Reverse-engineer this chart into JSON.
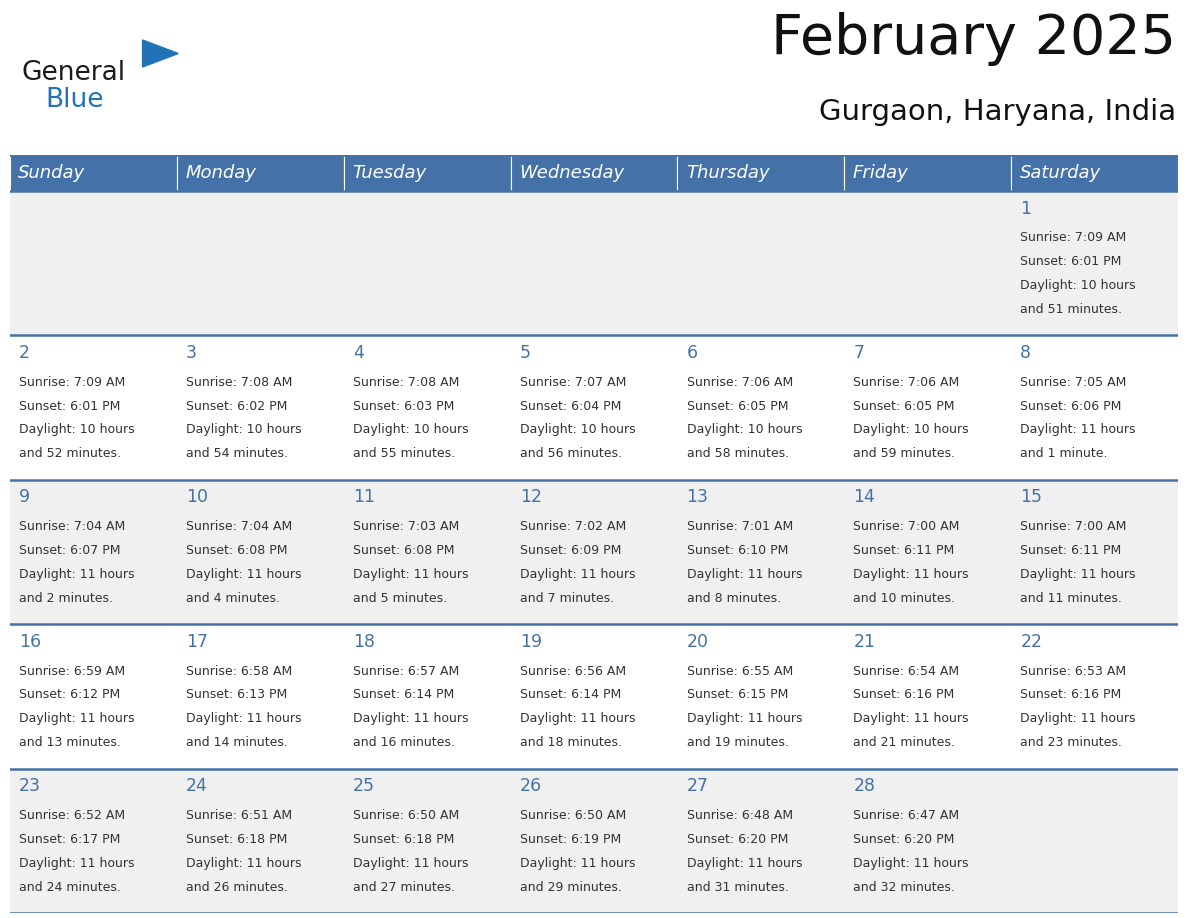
{
  "title": "February 2025",
  "subtitle": "Gurgaon, Haryana, India",
  "days_of_week": [
    "Sunday",
    "Monday",
    "Tuesday",
    "Wednesday",
    "Thursday",
    "Friday",
    "Saturday"
  ],
  "header_bg": "#4472a8",
  "header_text": "#ffffff",
  "cell_bg_even": "#f0f0f0",
  "cell_bg_odd": "#ffffff",
  "day_number_color": "#4472a8",
  "info_text_color": "#333333",
  "border_color": "#4472a8",
  "logo_general_color": "#1a1a1a",
  "logo_blue_color": "#2272b8",
  "calendar_data": [
    {
      "day": 1,
      "week_row": 0,
      "col": 6,
      "sunrise": "7:09 AM",
      "sunset": "6:01 PM",
      "daylight_hours": 10,
      "daylight_minutes": 51
    },
    {
      "day": 2,
      "week_row": 1,
      "col": 0,
      "sunrise": "7:09 AM",
      "sunset": "6:01 PM",
      "daylight_hours": 10,
      "daylight_minutes": 52
    },
    {
      "day": 3,
      "week_row": 1,
      "col": 1,
      "sunrise": "7:08 AM",
      "sunset": "6:02 PM",
      "daylight_hours": 10,
      "daylight_minutes": 54
    },
    {
      "day": 4,
      "week_row": 1,
      "col": 2,
      "sunrise": "7:08 AM",
      "sunset": "6:03 PM",
      "daylight_hours": 10,
      "daylight_minutes": 55
    },
    {
      "day": 5,
      "week_row": 1,
      "col": 3,
      "sunrise": "7:07 AM",
      "sunset": "6:04 PM",
      "daylight_hours": 10,
      "daylight_minutes": 56
    },
    {
      "day": 6,
      "week_row": 1,
      "col": 4,
      "sunrise": "7:06 AM",
      "sunset": "6:05 PM",
      "daylight_hours": 10,
      "daylight_minutes": 58
    },
    {
      "day": 7,
      "week_row": 1,
      "col": 5,
      "sunrise": "7:06 AM",
      "sunset": "6:05 PM",
      "daylight_hours": 10,
      "daylight_minutes": 59
    },
    {
      "day": 8,
      "week_row": 1,
      "col": 6,
      "sunrise": "7:05 AM",
      "sunset": "6:06 PM",
      "daylight_hours": 11,
      "daylight_minutes": 1
    },
    {
      "day": 9,
      "week_row": 2,
      "col": 0,
      "sunrise": "7:04 AM",
      "sunset": "6:07 PM",
      "daylight_hours": 11,
      "daylight_minutes": 2
    },
    {
      "day": 10,
      "week_row": 2,
      "col": 1,
      "sunrise": "7:04 AM",
      "sunset": "6:08 PM",
      "daylight_hours": 11,
      "daylight_minutes": 4
    },
    {
      "day": 11,
      "week_row": 2,
      "col": 2,
      "sunrise": "7:03 AM",
      "sunset": "6:08 PM",
      "daylight_hours": 11,
      "daylight_minutes": 5
    },
    {
      "day": 12,
      "week_row": 2,
      "col": 3,
      "sunrise": "7:02 AM",
      "sunset": "6:09 PM",
      "daylight_hours": 11,
      "daylight_minutes": 7
    },
    {
      "day": 13,
      "week_row": 2,
      "col": 4,
      "sunrise": "7:01 AM",
      "sunset": "6:10 PM",
      "daylight_hours": 11,
      "daylight_minutes": 8
    },
    {
      "day": 14,
      "week_row": 2,
      "col": 5,
      "sunrise": "7:00 AM",
      "sunset": "6:11 PM",
      "daylight_hours": 11,
      "daylight_minutes": 10
    },
    {
      "day": 15,
      "week_row": 2,
      "col": 6,
      "sunrise": "7:00 AM",
      "sunset": "6:11 PM",
      "daylight_hours": 11,
      "daylight_minutes": 11
    },
    {
      "day": 16,
      "week_row": 3,
      "col": 0,
      "sunrise": "6:59 AM",
      "sunset": "6:12 PM",
      "daylight_hours": 11,
      "daylight_minutes": 13
    },
    {
      "day": 17,
      "week_row": 3,
      "col": 1,
      "sunrise": "6:58 AM",
      "sunset": "6:13 PM",
      "daylight_hours": 11,
      "daylight_minutes": 14
    },
    {
      "day": 18,
      "week_row": 3,
      "col": 2,
      "sunrise": "6:57 AM",
      "sunset": "6:14 PM",
      "daylight_hours": 11,
      "daylight_minutes": 16
    },
    {
      "day": 19,
      "week_row": 3,
      "col": 3,
      "sunrise": "6:56 AM",
      "sunset": "6:14 PM",
      "daylight_hours": 11,
      "daylight_minutes": 18
    },
    {
      "day": 20,
      "week_row": 3,
      "col": 4,
      "sunrise": "6:55 AM",
      "sunset": "6:15 PM",
      "daylight_hours": 11,
      "daylight_minutes": 19
    },
    {
      "day": 21,
      "week_row": 3,
      "col": 5,
      "sunrise": "6:54 AM",
      "sunset": "6:16 PM",
      "daylight_hours": 11,
      "daylight_minutes": 21
    },
    {
      "day": 22,
      "week_row": 3,
      "col": 6,
      "sunrise": "6:53 AM",
      "sunset": "6:16 PM",
      "daylight_hours": 11,
      "daylight_minutes": 23
    },
    {
      "day": 23,
      "week_row": 4,
      "col": 0,
      "sunrise": "6:52 AM",
      "sunset": "6:17 PM",
      "daylight_hours": 11,
      "daylight_minutes": 24
    },
    {
      "day": 24,
      "week_row": 4,
      "col": 1,
      "sunrise": "6:51 AM",
      "sunset": "6:18 PM",
      "daylight_hours": 11,
      "daylight_minutes": 26
    },
    {
      "day": 25,
      "week_row": 4,
      "col": 2,
      "sunrise": "6:50 AM",
      "sunset": "6:18 PM",
      "daylight_hours": 11,
      "daylight_minutes": 27
    },
    {
      "day": 26,
      "week_row": 4,
      "col": 3,
      "sunrise": "6:50 AM",
      "sunset": "6:19 PM",
      "daylight_hours": 11,
      "daylight_minutes": 29
    },
    {
      "day": 27,
      "week_row": 4,
      "col": 4,
      "sunrise": "6:48 AM",
      "sunset": "6:20 PM",
      "daylight_hours": 11,
      "daylight_minutes": 31
    },
    {
      "day": 28,
      "week_row": 4,
      "col": 5,
      "sunrise": "6:47 AM",
      "sunset": "6:20 PM",
      "daylight_hours": 11,
      "daylight_minutes": 32
    }
  ],
  "num_rows": 5,
  "num_cols": 7
}
